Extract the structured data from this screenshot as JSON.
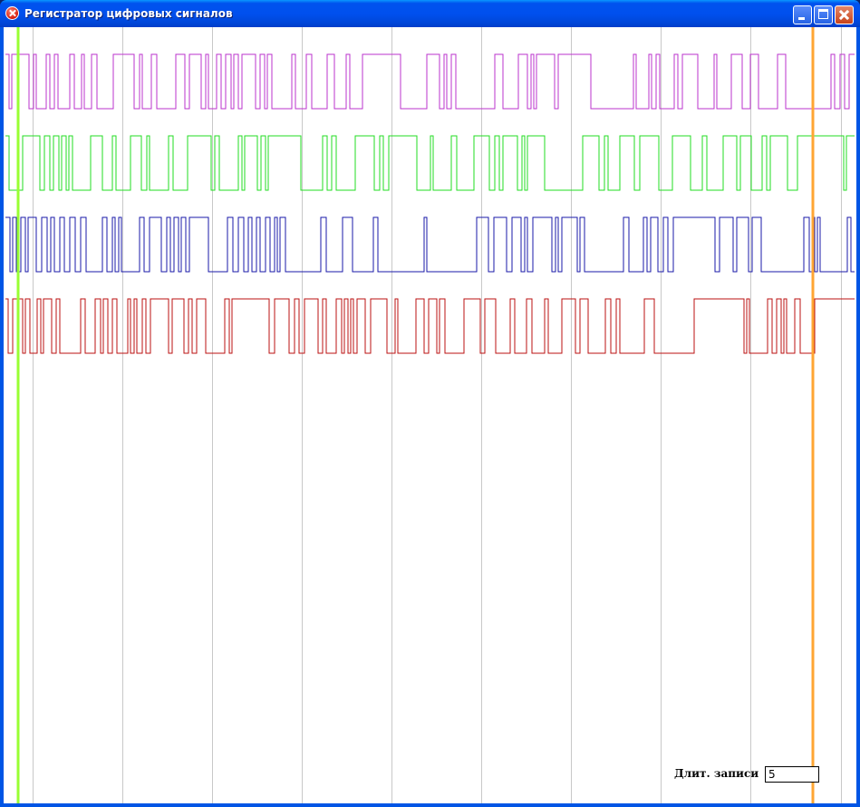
{
  "window": {
    "title": "Регистратор цифровых сигналов",
    "icon": "error-icon"
  },
  "controls": {
    "record_length_label": "Длит. записи",
    "record_length_value": "5"
  },
  "colors": {
    "grid": "#c8c8c8",
    "cursor_left": "#99ff33",
    "cursor_right": "#ffa533",
    "ch1": "#bb33cc",
    "ch2": "#22dd22",
    "ch3": "#1a1aa8",
    "ch4": "#bb1111"
  },
  "channels": [
    {
      "color_key": "ch1",
      "seed": 11,
      "density": 0.55
    },
    {
      "color_key": "ch2",
      "seed": 23,
      "density": 0.45
    },
    {
      "color_key": "ch3",
      "seed": 37,
      "density": 0.65
    },
    {
      "color_key": "ch4",
      "seed": 53,
      "density": 0.55
    }
  ]
}
